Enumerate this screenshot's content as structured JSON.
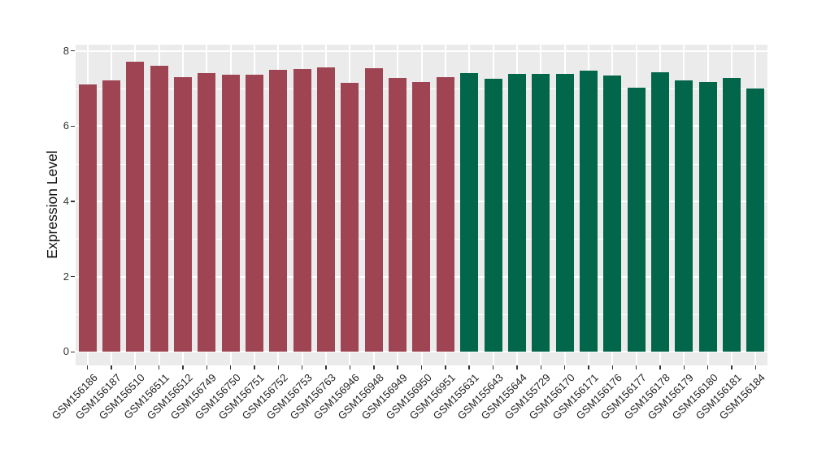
{
  "figure": {
    "background": "#FFFFFF",
    "panel_background": "#EBEBEB",
    "gridline_color": "#FFFFFF",
    "axis_text_color": "#333333"
  },
  "chart_data": {
    "type": "bar",
    "title": "",
    "xlabel": "",
    "ylabel": "Expression Level",
    "ylim": [
      0,
      8.2
    ],
    "y_ticks": [
      0,
      2,
      4,
      6,
      8
    ],
    "y_minor_gridlines": [
      1,
      3,
      5,
      7
    ],
    "grid": true,
    "legend": "none",
    "bar_width_fraction": 0.75,
    "categories": [
      "GSM156186",
      "GSM156187",
      "GSM156510",
      "GSM156511",
      "GSM156512",
      "GSM156749",
      "GSM156750",
      "GSM156751",
      "GSM156752",
      "GSM156753",
      "GSM156763",
      "GSM156946",
      "GSM156948",
      "GSM156949",
      "GSM156950",
      "GSM156951",
      "GSM155631",
      "GSM155643",
      "GSM155644",
      "GSM155729",
      "GSM156170",
      "GSM156171",
      "GSM156176",
      "GSM156177",
      "GSM156178",
      "GSM156179",
      "GSM156180",
      "GSM156181",
      "GSM156184"
    ],
    "values": [
      7.1,
      7.21,
      7.72,
      7.6,
      7.3,
      7.42,
      7.36,
      7.36,
      7.49,
      7.51,
      7.56,
      7.15,
      7.53,
      7.28,
      7.17,
      7.31,
      7.42,
      7.25,
      7.39,
      7.39,
      7.39,
      7.48,
      7.34,
      7.03,
      7.43,
      7.22,
      7.17,
      7.27,
      7.01
    ],
    "groups": [
      "group1",
      "group1",
      "group1",
      "group1",
      "group1",
      "group1",
      "group1",
      "group1",
      "group1",
      "group1",
      "group1",
      "group1",
      "group1",
      "group1",
      "group1",
      "group1",
      "group2",
      "group2",
      "group2",
      "group2",
      "group2",
      "group2",
      "group2",
      "group2",
      "group2",
      "group2",
      "group2",
      "group2",
      "group2"
    ],
    "group_colors": {
      "group1": "#9E4452",
      "group2": "#02664A"
    }
  }
}
